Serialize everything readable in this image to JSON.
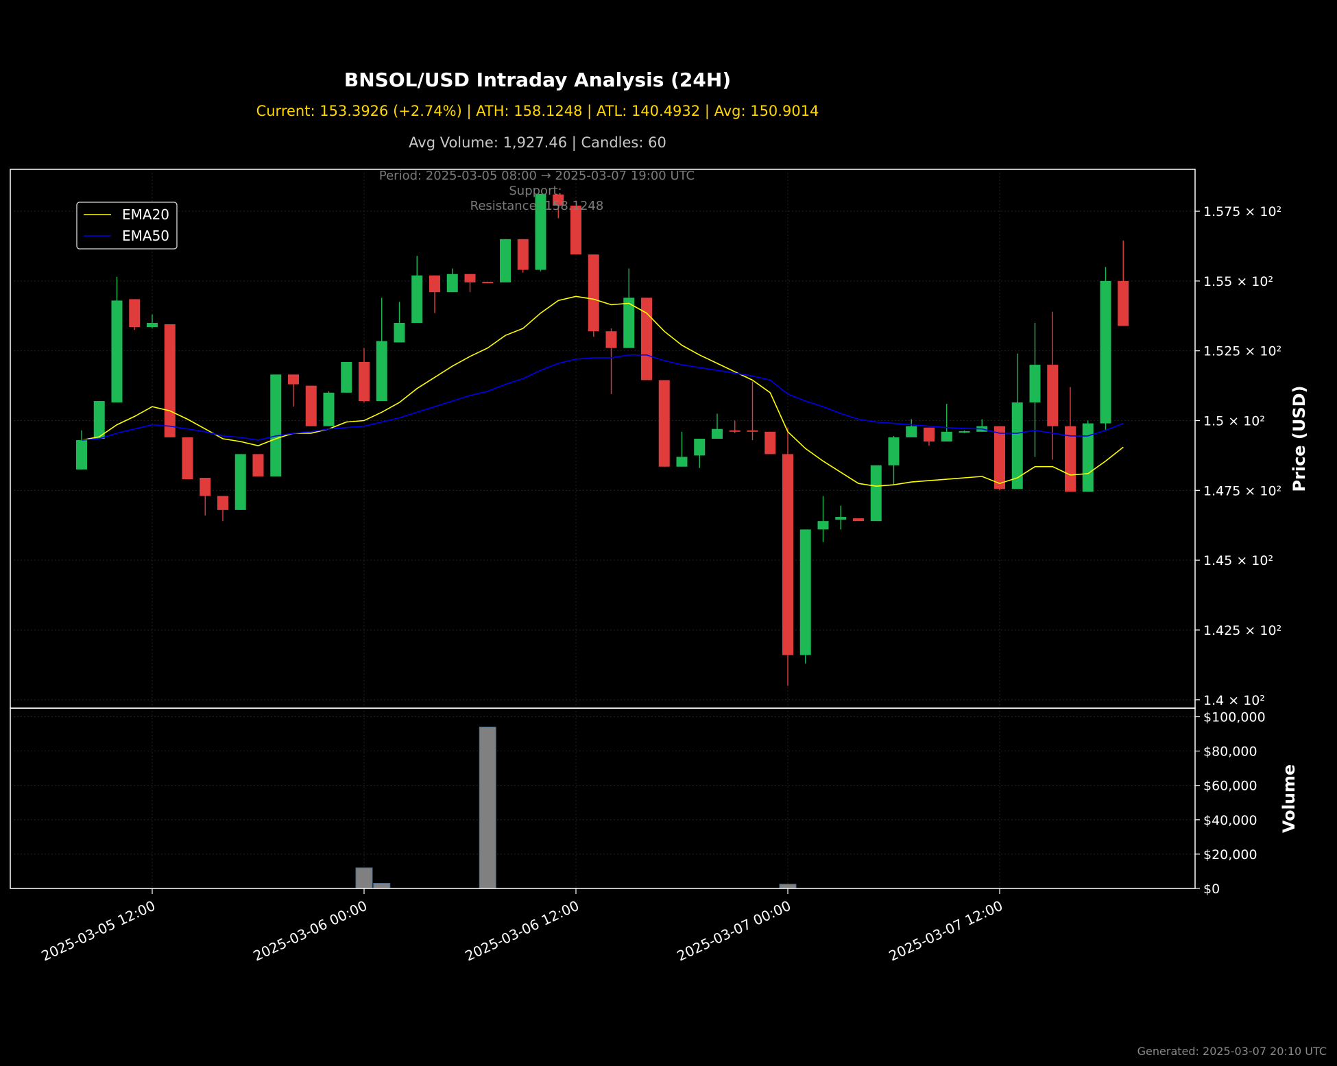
{
  "header": {
    "title": "BNSOL/USD Intraday Analysis (24H)",
    "stats": "Current: 153.3926 (+2.74%) | ATH: 158.1248 | ATL: 140.4932 | Avg: 150.9014",
    "stats2": "Avg Volume: 1,927.46 | Candles: 60"
  },
  "annotations": {
    "period": "Period: 2025-03-05 08:00 → 2025-03-07 19:00 UTC",
    "support": "Support:",
    "resistance": "Resistance: 158.1248"
  },
  "footer": "Generated: 2025-03-07 20:10 UTC",
  "colors": {
    "up": "#1db954",
    "down": "#e03c3c",
    "ema20": "#ffff00",
    "ema50": "#0000ee",
    "volume": "#808080",
    "volume_edge": "#4a6a8a"
  },
  "chart_data": {
    "type": "candlestick",
    "price_ylabel": "Price (USD)",
    "volume_ylabel": "Volume",
    "price_ylim": [
      139.7,
      159.0
    ],
    "volume_ylim": [
      0,
      105000
    ],
    "x_tick_labels": [
      "2025-03-05 12:00",
      "2025-03-06 00:00",
      "2025-03-06 12:00",
      "2025-03-07 00:00",
      "2025-03-07 12:00"
    ],
    "x_tick_positions_hours": [
      4,
      16,
      28,
      40,
      52
    ],
    "price_tick_labels": [
      "1.4 × 10²",
      "1.425 × 10²",
      "1.45 × 10²",
      "1.475 × 10²",
      "1.5 × 10²",
      "1.525 × 10²",
      "1.55 × 10²",
      "1.575 × 10²"
    ],
    "price_ticks": [
      140,
      142.5,
      145,
      147.5,
      150,
      152.5,
      155,
      157.5
    ],
    "volume_tick_labels": [
      "$0",
      "$20,000",
      "$40,000",
      "$60,000",
      "$80,000",
      "$100,000"
    ],
    "volume_ticks": [
      0,
      20000,
      40000,
      60000,
      80000,
      100000
    ],
    "legend": {
      "entries": [
        "EMA20",
        "EMA50"
      ],
      "placement": "upper-left"
    },
    "grid": true,
    "candles": [
      {
        "t": 0,
        "o": 148.25,
        "h": 149.65,
        "l": 148.25,
        "c": 149.3
      },
      {
        "t": 1,
        "o": 149.35,
        "h": 150.7,
        "l": 149.35,
        "c": 150.7
      },
      {
        "t": 2,
        "o": 150.65,
        "h": 155.15,
        "l": 150.65,
        "c": 154.3
      },
      {
        "t": 3,
        "o": 154.35,
        "h": 154.35,
        "l": 153.25,
        "c": 153.35
      },
      {
        "t": 4,
        "o": 153.35,
        "h": 153.8,
        "l": 153.3,
        "c": 153.5
      },
      {
        "t": 5,
        "o": 153.45,
        "h": 153.45,
        "l": 149.4,
        "c": 149.4
      },
      {
        "t": 6,
        "o": 149.4,
        "h": 149.4,
        "l": 147.9,
        "c": 147.9
      },
      {
        "t": 7,
        "o": 147.95,
        "h": 147.95,
        "l": 146.6,
        "c": 147.3
      },
      {
        "t": 8,
        "o": 147.3,
        "h": 147.3,
        "l": 146.4,
        "c": 146.8
      },
      {
        "t": 9,
        "o": 146.8,
        "h": 148.8,
        "l": 146.8,
        "c": 148.8
      },
      {
        "t": 10,
        "o": 148.8,
        "h": 148.8,
        "l": 148.0,
        "c": 148.0
      },
      {
        "t": 11,
        "o": 148.0,
        "h": 151.65,
        "l": 148.0,
        "c": 151.65
      },
      {
        "t": 12,
        "o": 151.65,
        "h": 151.65,
        "l": 150.5,
        "c": 151.3
      },
      {
        "t": 13,
        "o": 151.25,
        "h": 151.25,
        "l": 149.8,
        "c": 149.8
      },
      {
        "t": 14,
        "o": 149.8,
        "h": 151.05,
        "l": 149.8,
        "c": 151.0
      },
      {
        "t": 15,
        "o": 151.0,
        "h": 152.1,
        "l": 151.0,
        "c": 152.1
      },
      {
        "t": 16,
        "o": 152.1,
        "h": 152.6,
        "l": 150.65,
        "c": 150.7
      },
      {
        "t": 17,
        "o": 150.7,
        "h": 154.4,
        "l": 150.7,
        "c": 152.85
      },
      {
        "t": 18,
        "o": 152.8,
        "h": 154.25,
        "l": 152.8,
        "c": 153.5
      },
      {
        "t": 19,
        "o": 153.5,
        "h": 155.9,
        "l": 153.5,
        "c": 155.2
      },
      {
        "t": 20,
        "o": 155.2,
        "h": 155.2,
        "l": 153.85,
        "c": 154.6
      },
      {
        "t": 21,
        "o": 154.6,
        "h": 155.45,
        "l": 154.6,
        "c": 155.25
      },
      {
        "t": 22,
        "o": 155.25,
        "h": 155.25,
        "l": 154.6,
        "c": 154.95
      },
      {
        "t": 23,
        "o": 154.97,
        "h": 154.97,
        "l": 154.92,
        "c": 154.93
      },
      {
        "t": 24,
        "o": 154.95,
        "h": 156.5,
        "l": 154.95,
        "c": 156.5
      },
      {
        "t": 25,
        "o": 156.5,
        "h": 156.5,
        "l": 155.3,
        "c": 155.4
      },
      {
        "t": 26,
        "o": 155.4,
        "h": 158.12,
        "l": 155.35,
        "c": 158.12
      },
      {
        "t": 27,
        "o": 158.1,
        "h": 158.1,
        "l": 157.25,
        "c": 157.7
      },
      {
        "t": 28,
        "o": 157.7,
        "h": 157.7,
        "l": 155.95,
        "c": 155.95
      },
      {
        "t": 29,
        "o": 155.95,
        "h": 155.95,
        "l": 153.0,
        "c": 153.2
      },
      {
        "t": 30,
        "o": 153.2,
        "h": 153.3,
        "l": 150.95,
        "c": 152.6
      },
      {
        "t": 31,
        "o": 152.6,
        "h": 155.45,
        "l": 152.6,
        "c": 154.4
      },
      {
        "t": 32,
        "o": 154.4,
        "h": 154.4,
        "l": 151.45,
        "c": 151.45
      },
      {
        "t": 33,
        "o": 151.45,
        "h": 151.45,
        "l": 148.35,
        "c": 148.35
      },
      {
        "t": 34,
        "o": 148.35,
        "h": 149.6,
        "l": 148.35,
        "c": 148.7
      },
      {
        "t": 35,
        "o": 148.75,
        "h": 149.3,
        "l": 148.3,
        "c": 149.35
      },
      {
        "t": 36,
        "o": 149.35,
        "h": 150.25,
        "l": 149.35,
        "c": 149.7
      },
      {
        "t": 37,
        "o": 149.65,
        "h": 150.0,
        "l": 149.55,
        "c": 149.6
      },
      {
        "t": 38,
        "o": 149.65,
        "h": 151.4,
        "l": 149.3,
        "c": 149.6
      },
      {
        "t": 39,
        "o": 149.6,
        "h": 149.6,
        "l": 148.8,
        "c": 148.8
      },
      {
        "t": 40,
        "o": 148.8,
        "h": 149.75,
        "l": 140.5,
        "c": 141.6
      },
      {
        "t": 41,
        "o": 141.6,
        "h": 146.1,
        "l": 141.3,
        "c": 146.1
      },
      {
        "t": 42,
        "o": 146.1,
        "h": 147.3,
        "l": 145.65,
        "c": 146.4
      },
      {
        "t": 43,
        "o": 146.45,
        "h": 146.95,
        "l": 146.1,
        "c": 146.55
      },
      {
        "t": 44,
        "o": 146.5,
        "h": 146.5,
        "l": 146.4,
        "c": 146.4
      },
      {
        "t": 45,
        "o": 146.4,
        "h": 148.4,
        "l": 146.4,
        "c": 148.4
      },
      {
        "t": 46,
        "o": 148.4,
        "h": 149.45,
        "l": 147.7,
        "c": 149.4
      },
      {
        "t": 47,
        "o": 149.4,
        "h": 150.05,
        "l": 149.4,
        "c": 149.8
      },
      {
        "t": 48,
        "o": 149.75,
        "h": 149.75,
        "l": 149.1,
        "c": 149.25
      },
      {
        "t": 49,
        "o": 149.25,
        "h": 150.6,
        "l": 149.25,
        "c": 149.6
      },
      {
        "t": 50,
        "o": 149.6,
        "h": 149.65,
        "l": 149.55,
        "c": 149.62
      },
      {
        "t": 51,
        "o": 149.6,
        "h": 150.05,
        "l": 149.6,
        "c": 149.8
      },
      {
        "t": 52,
        "o": 149.8,
        "h": 149.8,
        "l": 147.5,
        "c": 147.55
      },
      {
        "t": 53,
        "o": 147.55,
        "h": 152.4,
        "l": 147.55,
        "c": 150.65
      },
      {
        "t": 54,
        "o": 150.65,
        "h": 153.5,
        "l": 148.7,
        "c": 152.0
      },
      {
        "t": 55,
        "o": 152.0,
        "h": 153.9,
        "l": 148.6,
        "c": 149.8
      },
      {
        "t": 56,
        "o": 149.8,
        "h": 151.2,
        "l": 147.45,
        "c": 147.45
      },
      {
        "t": 57,
        "o": 147.45,
        "h": 150.0,
        "l": 147.45,
        "c": 149.9
      },
      {
        "t": 58,
        "o": 149.9,
        "h": 155.5,
        "l": 149.65,
        "c": 155.0
      },
      {
        "t": 59,
        "o": 155.0,
        "h": 156.45,
        "l": 153.39,
        "c": 153.39
      }
    ],
    "ema20": [
      149.3,
      149.42,
      149.85,
      150.15,
      150.5,
      150.35,
      150.05,
      149.7,
      149.35,
      149.25,
      149.1,
      149.35,
      149.55,
      149.55,
      149.7,
      149.95,
      150.0,
      150.3,
      150.65,
      151.15,
      151.55,
      151.95,
      152.3,
      152.6,
      153.05,
      153.3,
      153.85,
      154.3,
      154.45,
      154.35,
      154.15,
      154.2,
      153.85,
      153.2,
      152.7,
      152.35,
      152.05,
      151.75,
      151.45,
      151.0,
      149.6,
      149.0,
      148.55,
      148.15,
      147.75,
      147.65,
      147.7,
      147.8,
      147.85,
      147.9,
      147.95,
      148.0,
      147.75,
      147.95,
      148.35,
      148.35,
      148.05,
      148.1,
      148.55,
      149.05
    ],
    "ema50": [
      149.3,
      149.35,
      149.55,
      149.7,
      149.85,
      149.8,
      149.7,
      149.6,
      149.45,
      149.4,
      149.3,
      149.45,
      149.55,
      149.6,
      149.7,
      149.75,
      149.8,
      149.95,
      150.1,
      150.3,
      150.5,
      150.7,
      150.9,
      151.05,
      151.3,
      151.5,
      151.8,
      152.05,
      152.2,
      152.25,
      152.25,
      152.35,
      152.35,
      152.15,
      152.0,
      151.9,
      151.8,
      151.7,
      151.6,
      151.45,
      150.95,
      150.7,
      150.5,
      150.25,
      150.05,
      149.95,
      149.9,
      149.85,
      149.8,
      149.75,
      149.72,
      149.7,
      149.55,
      149.55,
      149.65,
      149.55,
      149.45,
      149.45,
      149.65,
      149.9
    ],
    "volume": [
      {
        "t": 16,
        "v": 12000
      },
      {
        "t": 17,
        "v": 3000
      },
      {
        "t": 23,
        "v": 94000
      },
      {
        "t": 40,
        "v": 2500
      }
    ]
  }
}
